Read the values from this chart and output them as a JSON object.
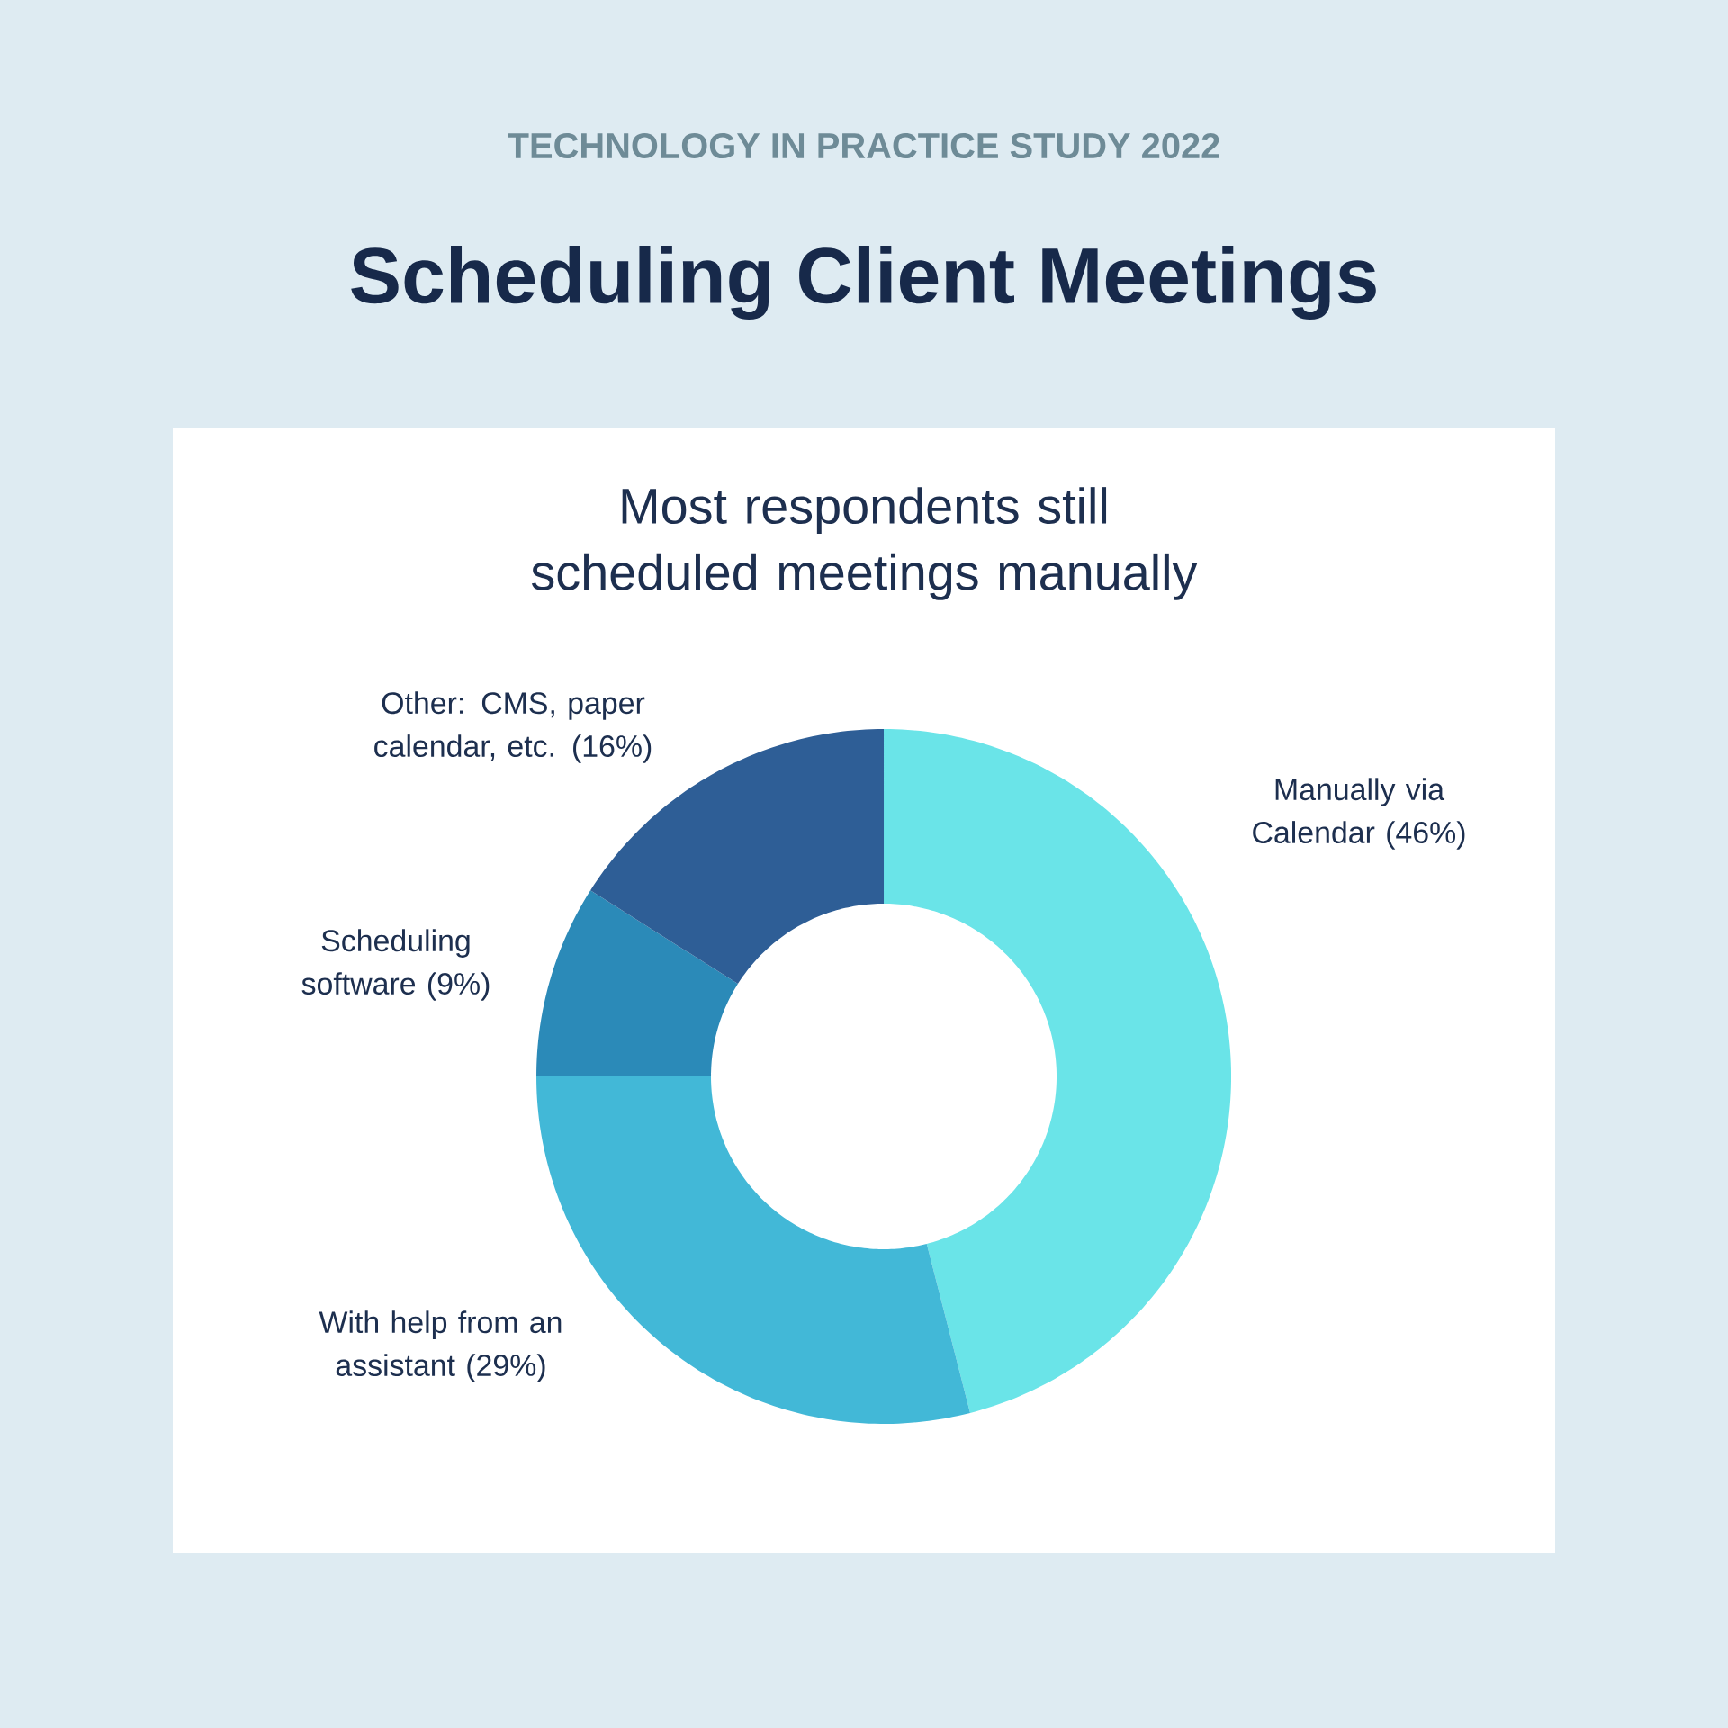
{
  "chart_data": {
    "type": "donut",
    "annotations": [
      "TECHNOLOGY IN PRACTICE STUDY 2022"
    ],
    "title": "Scheduling Client Meetings",
    "subtitle": "Most respondents still scheduled meetings manually",
    "categories": [
      "Manually via Calendar (46%)",
      "With help from an assistant (29%)",
      "Scheduling software (9%)",
      "Other: CMS, paper calendar, etc. (16%)"
    ],
    "values": [
      46,
      29,
      9,
      16
    ],
    "colors": [
      "#6ae4e8",
      "#42b8d7",
      "#2b8ab8",
      "#2e5e96"
    ]
  }
}
